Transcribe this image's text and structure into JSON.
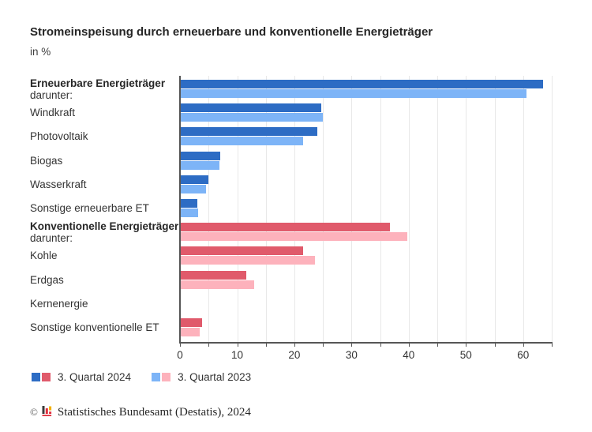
{
  "title": "Stromeinspeisung durch erneuerbare und konventionelle Energieträger",
  "subtitle": "in %",
  "legend": {
    "items": [
      {
        "label": "3. Quartal 2024",
        "swatches": [
          "#2d6cc4",
          "#e05a6b"
        ]
      },
      {
        "label": "3. Quartal 2023",
        "swatches": [
          "#7db4f7",
          "#fdb2bc"
        ]
      }
    ]
  },
  "footer": {
    "copyright": "©",
    "source": "Statistisches Bundesamt (Destatis), 2024"
  },
  "chart_data": {
    "type": "bar",
    "orientation": "horizontal",
    "title": "Stromeinspeisung durch erneuerbare und konventionelle Energieträger",
    "unit": "%",
    "xlabel": "",
    "ylabel": "",
    "xlim": [
      0,
      65
    ],
    "xticks_labeled": [
      0,
      10,
      20,
      30,
      40,
      50,
      60
    ],
    "grid_step": 5,
    "grid": true,
    "legend_position": "bottom",
    "series_keys": [
      "2024",
      "2023"
    ],
    "series_names": {
      "2024": "3. Quartal 2024",
      "2023": "3. Quartal 2023"
    },
    "colors": {
      "renewable": {
        "2024": "#2d6cc4",
        "2023": "#7db4f7"
      },
      "conventional": {
        "2024": "#e05a6b",
        "2023": "#fdb2bc"
      }
    },
    "rows": [
      {
        "label": "Erneuerbare Energieträger",
        "sublabel": "darunter:",
        "bold": true,
        "group": "renewable",
        "values": {
          "2024": 63.4,
          "2023": 60.4
        }
      },
      {
        "label": "Windkraft",
        "group": "renewable",
        "values": {
          "2024": 24.6,
          "2023": 24.9
        }
      },
      {
        "label": "Photovoltaik",
        "group": "renewable",
        "values": {
          "2024": 23.8,
          "2023": 21.4
        }
      },
      {
        "label": "Biogas",
        "group": "renewable",
        "values": {
          "2024": 6.9,
          "2023": 6.8
        }
      },
      {
        "label": "Wasserkraft",
        "group": "renewable",
        "values": {
          "2024": 4.8,
          "2023": 4.4
        }
      },
      {
        "label": "Sonstige erneuerbare ET",
        "group": "renewable",
        "values": {
          "2024": 2.9,
          "2023": 3.0
        }
      },
      {
        "label": "Konventionelle Energieträger",
        "sublabel": "darunter:",
        "bold": true,
        "group": "conventional",
        "values": {
          "2024": 36.6,
          "2023": 39.6
        }
      },
      {
        "label": "Kohle",
        "group": "conventional",
        "values": {
          "2024": 21.4,
          "2023": 23.5
        }
      },
      {
        "label": "Erdgas",
        "group": "conventional",
        "values": {
          "2024": 11.5,
          "2023": 12.8
        }
      },
      {
        "label": "Kernenergie",
        "group": "conventional",
        "values": {
          "2024": 0,
          "2023": 0
        }
      },
      {
        "label": "Sonstige konventionelle ET",
        "group": "conventional",
        "values": {
          "2024": 3.7,
          "2023": 3.3
        }
      }
    ]
  }
}
